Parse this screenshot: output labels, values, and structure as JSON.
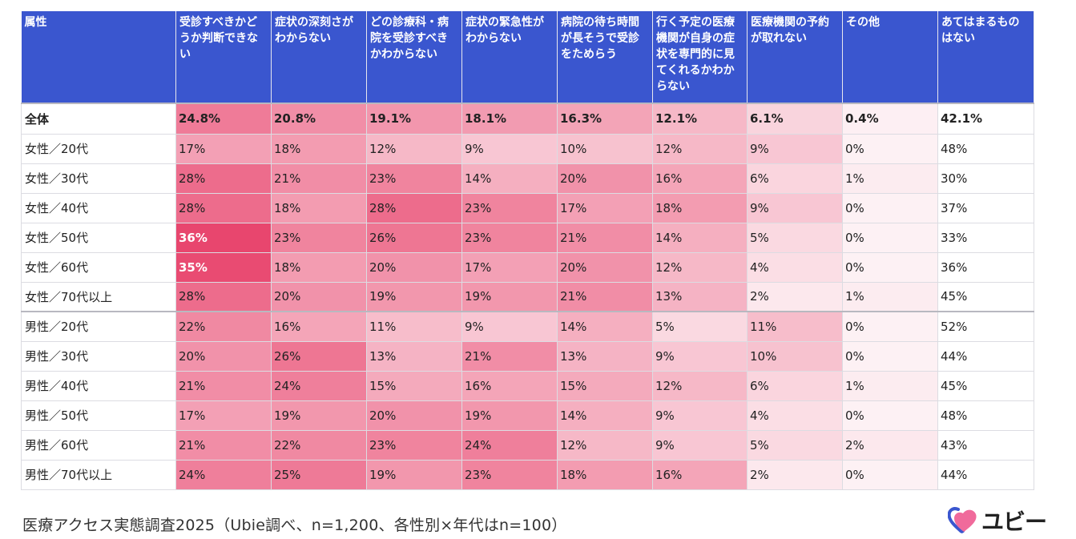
{
  "caption": "医療アクセス実態調査2025（Ubie調べ、n=1,200、各性別×年代はn=100）",
  "brand": {
    "name": "ユビー",
    "icon": "heart-icon",
    "colors": {
      "heart_blue": "#3a56cf",
      "heart_pink": "#f06a9b"
    }
  },
  "chart_data": {
    "type": "table",
    "attribute_header": "属性",
    "columns": [
      "受診すべきかどうか判断できない",
      "症状の深刻さがわからない",
      "どの診療科・病院を受診すべきかわからない",
      "症状の緊急性がわからない",
      "病院の待ち時間が長そうで受診をためらう",
      "行く予定の医療機関が自身の症状を専門的に見てくれるかわからない",
      "医療機関の予約が取れない",
      "その他",
      "あてはまるものはない"
    ],
    "heat_columns": 8,
    "rows": [
      {
        "label": "全体",
        "values": [
          24.8,
          20.8,
          19.1,
          18.1,
          16.3,
          12.1,
          6.1,
          0.4,
          42.1
        ],
        "display": [
          "24.8%",
          "20.8%",
          "19.1%",
          "18.1%",
          "16.3%",
          "12.1%",
          "6.1%",
          "0.4%",
          "42.1%"
        ]
      },
      {
        "label": "女性／20代",
        "values": [
          17,
          18,
          12,
          9,
          10,
          12,
          9,
          0,
          48
        ],
        "display": [
          "17%",
          "18%",
          "12%",
          "9%",
          "10%",
          "12%",
          "9%",
          "0%",
          "48%"
        ]
      },
      {
        "label": "女性／30代",
        "values": [
          28,
          21,
          23,
          14,
          20,
          16,
          6,
          1,
          30
        ],
        "display": [
          "28%",
          "21%",
          "23%",
          "14%",
          "20%",
          "16%",
          "6%",
          "1%",
          "30%"
        ]
      },
      {
        "label": "女性／40代",
        "values": [
          28,
          18,
          28,
          23,
          17,
          18,
          9,
          0,
          37
        ],
        "display": [
          "28%",
          "18%",
          "28%",
          "23%",
          "17%",
          "18%",
          "9%",
          "0%",
          "37%"
        ]
      },
      {
        "label": "女性／50代",
        "values": [
          36,
          23,
          26,
          23,
          21,
          14,
          5,
          0,
          33
        ],
        "display": [
          "36%",
          "23%",
          "26%",
          "23%",
          "21%",
          "14%",
          "5%",
          "0%",
          "33%"
        ]
      },
      {
        "label": "女性／60代",
        "values": [
          35,
          18,
          20,
          17,
          20,
          12,
          4,
          0,
          36
        ],
        "display": [
          "35%",
          "18%",
          "20%",
          "17%",
          "20%",
          "12%",
          "4%",
          "0%",
          "36%"
        ]
      },
      {
        "label": "女性／70代以上",
        "values": [
          28,
          20,
          19,
          19,
          21,
          13,
          2,
          1,
          45
        ],
        "display": [
          "28%",
          "20%",
          "19%",
          "19%",
          "21%",
          "13%",
          "2%",
          "1%",
          "45%"
        ]
      },
      {
        "label": "男性／20代",
        "values": [
          22,
          16,
          11,
          9,
          14,
          5,
          11,
          0,
          52
        ],
        "display": [
          "22%",
          "16%",
          "11%",
          "9%",
          "14%",
          "5%",
          "11%",
          "0%",
          "52%"
        ]
      },
      {
        "label": "男性／30代",
        "values": [
          20,
          26,
          13,
          21,
          13,
          9,
          10,
          0,
          44
        ],
        "display": [
          "20%",
          "26%",
          "13%",
          "21%",
          "13%",
          "9%",
          "10%",
          "0%",
          "44%"
        ]
      },
      {
        "label": "男性／40代",
        "values": [
          21,
          24,
          15,
          16,
          15,
          12,
          6,
          1,
          45
        ],
        "display": [
          "21%",
          "24%",
          "15%",
          "16%",
          "15%",
          "12%",
          "6%",
          "1%",
          "45%"
        ]
      },
      {
        "label": "男性／50代",
        "values": [
          17,
          19,
          20,
          19,
          14,
          9,
          4,
          0,
          48
        ],
        "display": [
          "17%",
          "19%",
          "20%",
          "19%",
          "14%",
          "9%",
          "4%",
          "0%",
          "48%"
        ]
      },
      {
        "label": "男性／60代",
        "values": [
          21,
          22,
          23,
          24,
          12,
          9,
          5,
          2,
          43
        ],
        "display": [
          "21%",
          "22%",
          "23%",
          "24%",
          "12%",
          "9%",
          "5%",
          "2%",
          "43%"
        ]
      },
      {
        "label": "男性／70代以上",
        "values": [
          24,
          25,
          19,
          23,
          18,
          16,
          2,
          0,
          44
        ],
        "display": [
          "24%",
          "25%",
          "19%",
          "23%",
          "18%",
          "16%",
          "2%",
          "0%",
          "44%"
        ]
      }
    ],
    "colors": {
      "header_bg": "#3a56cf",
      "header_text": "#ffffff",
      "heat_low": "#fdf1f4",
      "heat_high": "#e8466e"
    },
    "highlight_threshold": 35
  }
}
